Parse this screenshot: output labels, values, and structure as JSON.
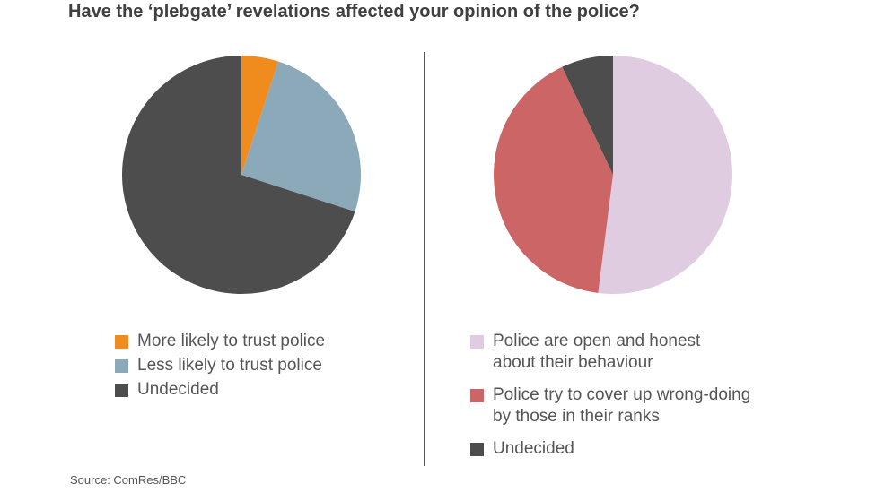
{
  "title": "Have the ‘plebgate’ revelations affected your opinion of the police?",
  "source": "Source: ComRes/BBC",
  "chart_data": [
    {
      "type": "pie",
      "slices": [
        {
          "label": "More likely to trust police",
          "value": 5,
          "color": "#f08c1e"
        },
        {
          "label": "Less likely to trust police",
          "value": 25,
          "color": "#8ba9b8"
        },
        {
          "label": "Undecided",
          "value": 70,
          "color": "#4d4d4d"
        }
      ]
    },
    {
      "type": "pie",
      "slices": [
        {
          "label": "Police are open and honest\nabout their behaviour",
          "value": 52,
          "color": "#dfcce0"
        },
        {
          "label": "Police try to cover up wrong-doing\nby those in their ranks",
          "value": 41,
          "color": "#cc6566"
        },
        {
          "label": "Undecided",
          "value": 7,
          "color": "#4d4d4d"
        }
      ]
    }
  ]
}
